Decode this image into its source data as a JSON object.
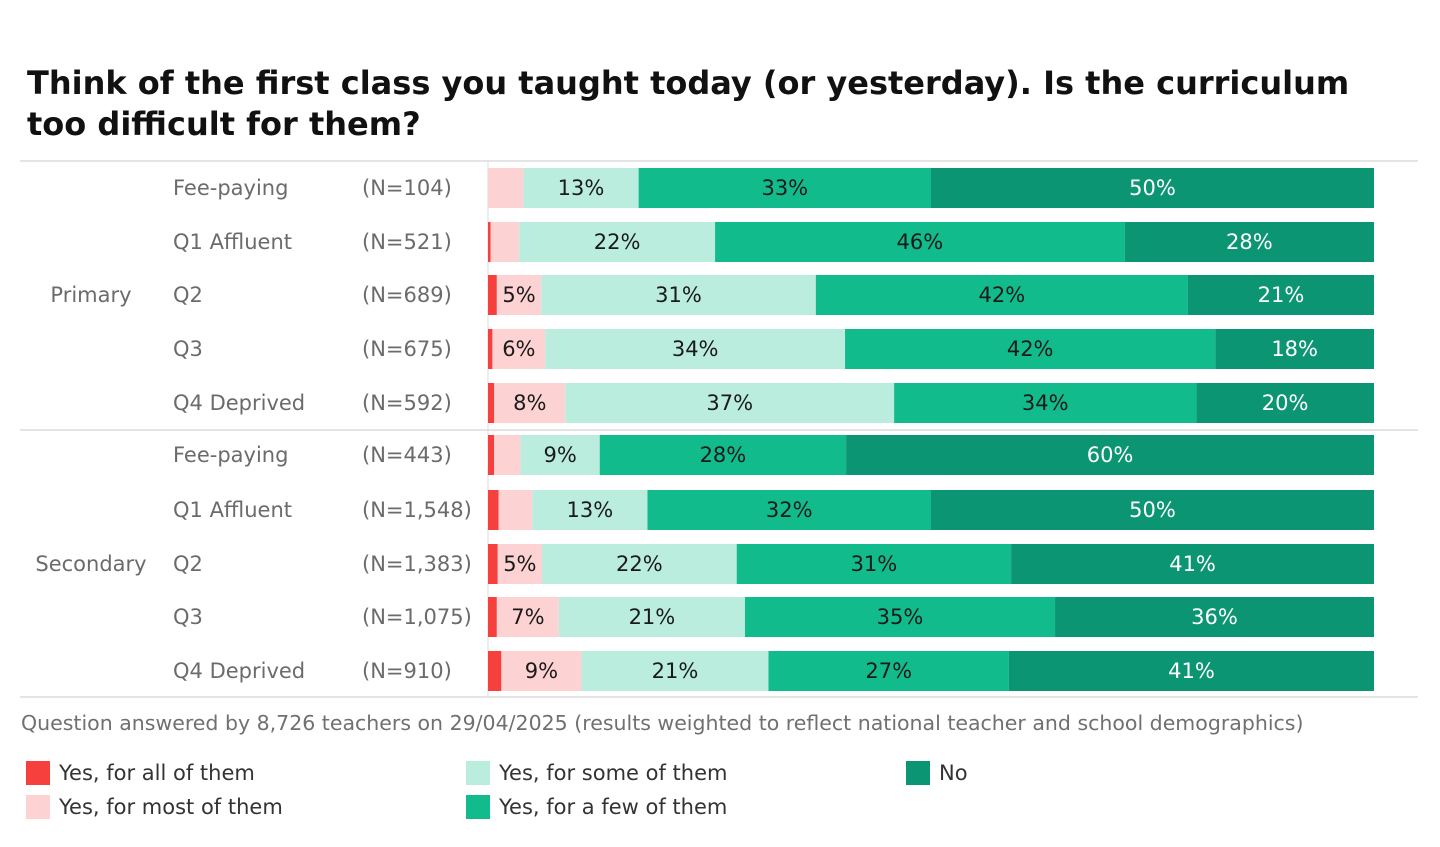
{
  "chart_data": {
    "type": "bar",
    "orientation": "horizontal",
    "stacked": true,
    "title": "Think of the first class you taught today (or yesterday). Is the curriculum too difficult for them?",
    "xlim": [
      0,
      100
    ],
    "grid": false,
    "legend_position": "bottom",
    "series": [
      {
        "name": "Yes, for all of them",
        "color": "#f5403e"
      },
      {
        "name": "Yes, for most of them",
        "color": "#fcd3d2"
      },
      {
        "name": "Yes, for some of them",
        "color": "#bbeddf"
      },
      {
        "name": "Yes, for a few of them",
        "color": "#12bb8c"
      },
      {
        "name": "No",
        "color": "#0c9573"
      }
    ],
    "groups": [
      {
        "label": "Primary",
        "rows": [
          {
            "category": "Fee-paying",
            "n": "(N=104)",
            "values": [
              0,
              4,
              13,
              33,
              50
            ],
            "labels": [
              "",
              "",
              "13%",
              "33%",
              "50%"
            ]
          },
          {
            "category": "Q1 Affluent",
            "n": "(N=521)",
            "values": [
              0.3,
              3.2,
              22,
              46,
              28
            ],
            "labels": [
              "",
              "",
              "22%",
              "46%",
              "28%"
            ]
          },
          {
            "category": "Q2",
            "n": "(N=689)",
            "values": [
              1,
              5,
              31,
              42,
              21
            ],
            "labels": [
              "",
              "5%",
              "31%",
              "42%",
              "21%"
            ]
          },
          {
            "category": "Q3",
            "n": "(N=675)",
            "values": [
              0.5,
              6,
              34,
              42,
              18
            ],
            "labels": [
              "",
              "6%",
              "34%",
              "42%",
              "18%"
            ]
          },
          {
            "category": "Q4 Deprived",
            "n": "(N=592)",
            "values": [
              0.7,
              8,
              37,
              34,
              20
            ],
            "labels": [
              "",
              "8%",
              "37%",
              "34%",
              "20%"
            ]
          }
        ]
      },
      {
        "label": "Secondary",
        "rows": [
          {
            "category": "Fee-paying",
            "n": "(N=443)",
            "values": [
              0.7,
              3,
              9,
              28,
              60
            ],
            "labels": [
              "",
              "",
              "9%",
              "28%",
              "60%"
            ]
          },
          {
            "category": "Q1 Affluent",
            "n": "(N=1,548)",
            "values": [
              1.2,
              3.8,
              13,
              32,
              50
            ],
            "labels": [
              "",
              "",
              "13%",
              "32%",
              "50%"
            ]
          },
          {
            "category": "Q2",
            "n": "(N=1,383)",
            "values": [
              1.1,
              5,
              22,
              31,
              41
            ],
            "labels": [
              "",
              "5%",
              "22%",
              "31%",
              "41%"
            ]
          },
          {
            "category": "Q3",
            "n": "(N=1,075)",
            "values": [
              1,
              7,
              21,
              35,
              36
            ],
            "labels": [
              "",
              "7%",
              "21%",
              "35%",
              "36%"
            ]
          },
          {
            "category": "Q4 Deprived",
            "n": "(N=910)",
            "values": [
              1.5,
              9,
              21,
              27,
              41
            ],
            "labels": [
              "",
              "9%",
              "21%",
              "27%",
              "41%"
            ]
          }
        ]
      }
    ]
  },
  "footnote": "Question answered by 8,726 teachers on 29/04/2025 (results weighted to reflect national teacher and school demographics)"
}
